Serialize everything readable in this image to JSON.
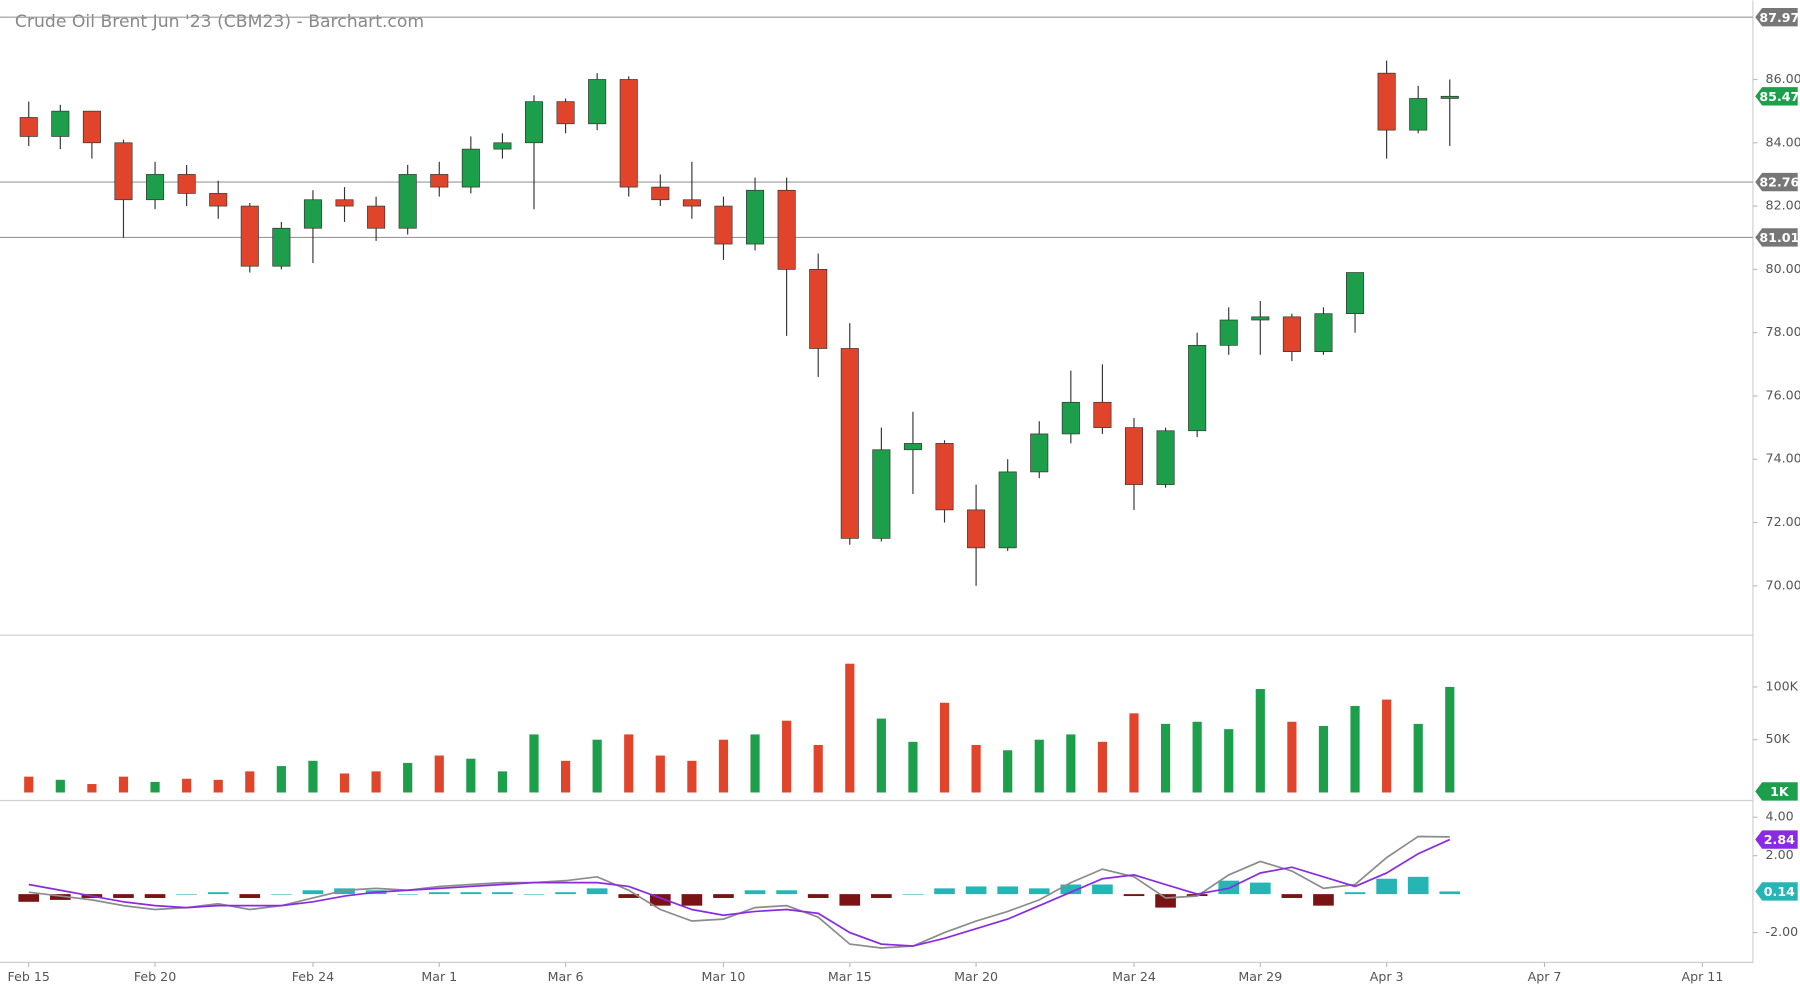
{
  "chart_data": [
    {
      "type": "candlestick",
      "title": "Crude Oil Brent Jun '23 (CBM23) - Barchart.com",
      "up_color": "#1d9e4a",
      "down_color": "#e0452c",
      "x": [
        0,
        1,
        2,
        3,
        4,
        5,
        6,
        7,
        8,
        9,
        10,
        11,
        12,
        13,
        14,
        15,
        16,
        17,
        18,
        19,
        20,
        21,
        22,
        23,
        24,
        25,
        26,
        27,
        28,
        29,
        30,
        31,
        32,
        33,
        34,
        35,
        36,
        37,
        38,
        39,
        40,
        41,
        42,
        43,
        44,
        45
      ],
      "open": [
        84.8,
        84.2,
        85.0,
        84.0,
        82.2,
        83.0,
        82.4,
        82.0,
        80.1,
        81.3,
        82.2,
        82.0,
        81.3,
        83.0,
        82.6,
        83.8,
        84.0,
        85.3,
        84.6,
        86.0,
        82.6,
        82.2,
        82.0,
        80.8,
        82.5,
        80.0,
        77.5,
        71.5,
        74.3,
        74.5,
        72.4,
        71.2,
        73.6,
        74.8,
        75.8,
        75.0,
        73.2,
        74.9,
        77.6,
        78.4,
        78.5,
        77.4,
        78.6,
        86.2,
        84.4,
        85.4
      ],
      "high": [
        85.3,
        85.2,
        85.0,
        84.1,
        83.4,
        83.3,
        82.8,
        82.1,
        81.5,
        82.5,
        82.6,
        82.3,
        83.3,
        83.4,
        84.2,
        84.3,
        85.5,
        85.4,
        86.2,
        86.1,
        83.0,
        83.4,
        82.3,
        82.9,
        82.9,
        80.5,
        78.3,
        75.0,
        75.5,
        74.6,
        73.2,
        74.0,
        75.2,
        76.8,
        77.0,
        75.3,
        75.0,
        78.0,
        78.8,
        79.0,
        78.6,
        78.8,
        79.9,
        86.6,
        85.8,
        86.0
      ],
      "low": [
        83.9,
        83.8,
        83.5,
        81.0,
        81.9,
        82.0,
        81.6,
        79.9,
        80.0,
        80.2,
        81.5,
        80.9,
        81.1,
        82.3,
        82.4,
        83.5,
        81.9,
        84.3,
        84.4,
        82.3,
        82.0,
        81.6,
        80.3,
        80.6,
        77.9,
        76.6,
        71.3,
        71.4,
        72.9,
        72.0,
        70.0,
        71.1,
        73.4,
        74.5,
        74.8,
        72.4,
        73.1,
        74.7,
        77.3,
        77.3,
        77.1,
        77.3,
        78.0,
        83.5,
        84.3,
        83.9
      ],
      "close": [
        84.2,
        85.0,
        84.0,
        82.2,
        83.0,
        82.4,
        82.0,
        80.1,
        81.3,
        82.2,
        82.0,
        81.3,
        83.0,
        82.6,
        83.8,
        84.0,
        85.3,
        84.6,
        86.0,
        82.6,
        82.2,
        82.0,
        80.8,
        82.5,
        80.0,
        77.5,
        71.5,
        74.3,
        74.5,
        72.4,
        71.2,
        73.6,
        74.8,
        75.8,
        75.0,
        73.2,
        74.9,
        77.6,
        78.4,
        78.5,
        77.4,
        78.6,
        79.9,
        84.4,
        85.4,
        85.47
      ],
      "xlim": [
        -0.91,
        54.6
      ],
      "xticks": [
        {
          "value": 0,
          "label": "Feb 15"
        },
        {
          "value": 4,
          "label": "Feb 20"
        },
        {
          "value": 9,
          "label": "Feb 24"
        },
        {
          "value": 13,
          "label": "Mar 1"
        },
        {
          "value": 17,
          "label": "Mar 6"
        },
        {
          "value": 22,
          "label": "Mar 10"
        },
        {
          "value": 26,
          "label": "Mar 15"
        },
        {
          "value": 30,
          "label": "Mar 20"
        },
        {
          "value": 35,
          "label": "Mar 24"
        },
        {
          "value": 39,
          "label": "Mar 29"
        },
        {
          "value": 43,
          "label": "Apr 3"
        },
        {
          "value": 48,
          "label": "Apr 7"
        },
        {
          "value": 53,
          "label": "Apr 11"
        }
      ],
      "ylim": [
        68.44,
        88.5
      ],
      "yticks": [
        {
          "value": 70,
          "label": "70.00"
        },
        {
          "value": 72,
          "label": "72.00"
        },
        {
          "value": 74,
          "label": "74.00"
        },
        {
          "value": 76,
          "label": "76.00"
        },
        {
          "value": 78,
          "label": "78.00"
        },
        {
          "value": 80,
          "label": "80.00"
        },
        {
          "value": 82,
          "label": "82.00"
        },
        {
          "value": 84,
          "label": "84.00"
        },
        {
          "value": 86,
          "label": "86.00"
        }
      ],
      "levels": [
        87.97,
        82.76,
        81.01
      ],
      "level_color": "#9a9a9a"
    },
    {
      "type": "bar",
      "values": [
        15000,
        12000,
        8000,
        15000,
        10000,
        13000,
        12000,
        20000,
        25000,
        30000,
        18000,
        20000,
        28000,
        35000,
        32000,
        20000,
        55000,
        30000,
        50000,
        55000,
        35000,
        30000,
        50000,
        55000,
        68000,
        45000,
        122000,
        70000,
        48000,
        85000,
        45000,
        40000,
        50000,
        55000,
        48000,
        75000,
        65000,
        67000,
        60000,
        98000,
        67000,
        63000,
        82000,
        88000,
        65000,
        100000
      ],
      "ylim": [
        -7600,
        149000
      ],
      "yticks": [
        {
          "value": 50000,
          "label": "50K"
        },
        {
          "value": 100000,
          "label": "100K"
        }
      ],
      "last_volume": {
        "value": 1000,
        "label": "1K"
      }
    },
    {
      "type": "line",
      "series": [
        {
          "color": "#8c8c8c",
          "values": [
            0.1,
            -0.1,
            -0.3,
            -0.6,
            -0.8,
            -0.7,
            -0.5,
            -0.8,
            -0.6,
            -0.2,
            0.2,
            0.3,
            0.2,
            0.4,
            0.5,
            0.6,
            0.6,
            0.7,
            0.9,
            0.2,
            -0.8,
            -1.4,
            -1.3,
            -0.7,
            -0.6,
            -1.2,
            -2.6,
            -2.8,
            -2.7,
            -2.0,
            -1.4,
            -0.9,
            -0.3,
            0.6,
            1.3,
            0.9,
            -0.2,
            -0.1,
            1.0,
            1.7,
            1.2,
            0.3,
            0.5,
            1.9,
            3.0,
            2.98
          ]
        },
        {
          "color": "#8a2be2",
          "values": [
            0.5,
            0.2,
            -0.1,
            -0.4,
            -0.6,
            -0.7,
            -0.6,
            -0.6,
            -0.6,
            -0.4,
            -0.1,
            0.1,
            0.2,
            0.3,
            0.4,
            0.5,
            0.6,
            0.6,
            0.6,
            0.4,
            -0.2,
            -0.8,
            -1.1,
            -0.9,
            -0.8,
            -1.0,
            -2.0,
            -2.6,
            -2.7,
            -2.3,
            -1.8,
            -1.3,
            -0.6,
            0.1,
            0.8,
            1.0,
            0.5,
            0.0,
            0.3,
            1.1,
            1.4,
            0.9,
            0.4,
            1.1,
            2.1,
            2.84
          ]
        }
      ],
      "histogram": {
        "up_color": "#26b5b5",
        "down_color": "#7a1414",
        "values": [
          -0.4,
          -0.3,
          -0.2,
          -0.2,
          -0.2,
          0,
          0.1,
          -0.2,
          0,
          0.2,
          0.3,
          0.2,
          0,
          0.1,
          0.1,
          0.1,
          0,
          0.1,
          0.3,
          -0.2,
          -0.6,
          -0.6,
          -0.2,
          0.2,
          0.2,
          -0.2,
          -0.6,
          -0.2,
          0,
          0.3,
          0.4,
          0.4,
          0.3,
          0.5,
          0.5,
          -0.1,
          -0.7,
          -0.1,
          0.7,
          0.6,
          -0.2,
          -0.6,
          0.1,
          0.8,
          0.9,
          0.14
        ]
      },
      "ylim": [
        -3.55,
        4.87
      ],
      "yticks": [
        {
          "value": 4,
          "label": "4.00"
        },
        {
          "value": 2,
          "label": "2.00"
        },
        {
          "value": -2,
          "label": "-2.00"
        }
      ]
    }
  ]
}
